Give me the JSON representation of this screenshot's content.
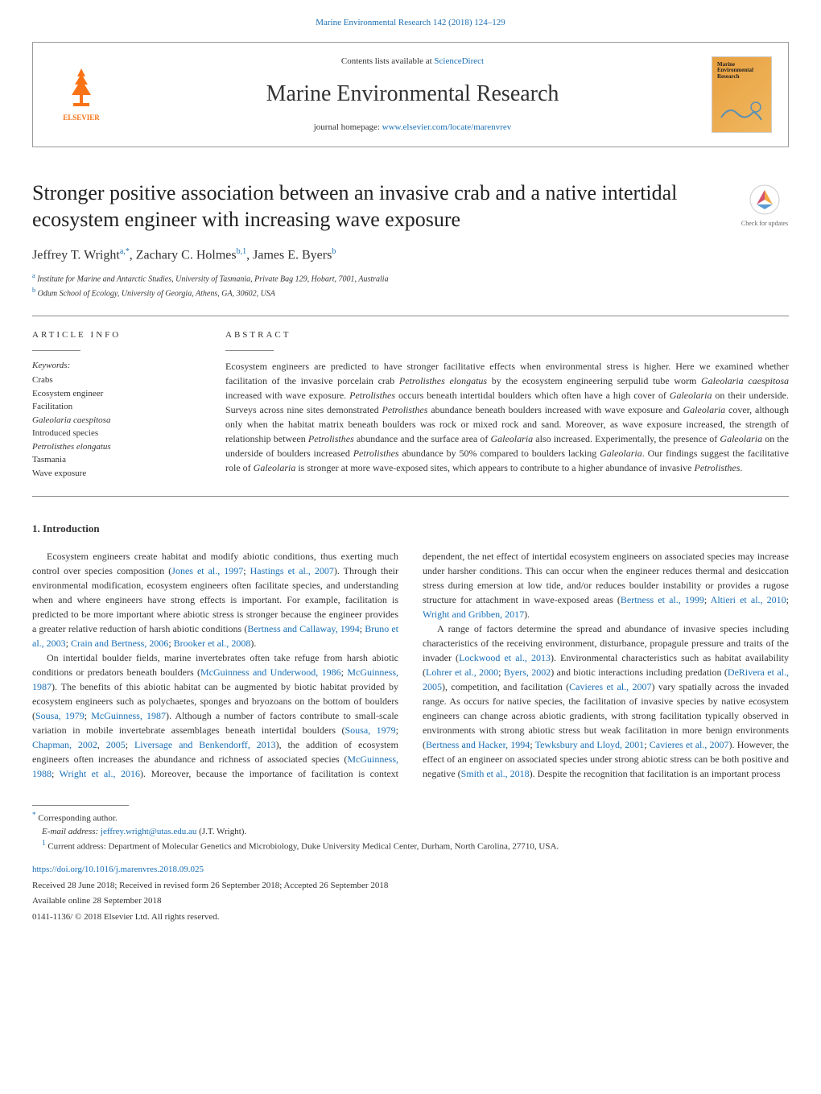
{
  "journal_ref": "Marine Environmental Research 142 (2018) 124–129",
  "header": {
    "contents_prefix": "Contents lists available at ",
    "contents_link": "ScienceDirect",
    "journal_name": "Marine Environmental Research",
    "homepage_prefix": "journal homepage: ",
    "homepage_link": "www.elsevier.com/locate/marenvrev",
    "publisher": "ELSEVIER",
    "cover_title": "Marine Environmental Research"
  },
  "article": {
    "title": "Stronger positive association between an invasive crab and a native intertidal ecosystem engineer with increasing wave exposure",
    "check_updates": "Check for updates",
    "authors_html": "Jeffrey T. Wright<sup>a,*</sup>, Zachary C. Holmes<sup>b,1</sup>, James E. Byers<sup>b</sup>",
    "affiliations": {
      "a": "Institute for Marine and Antarctic Studies, University of Tasmania, Private Bag 129, Hobart, 7001, Australia",
      "b": "Odum School of Ecology, University of Georgia, Athens, GA, 30602, USA"
    }
  },
  "info": {
    "heading": "ARTICLE INFO",
    "keywords_label": "Keywords:",
    "keywords": [
      {
        "text": "Crabs",
        "italic": false
      },
      {
        "text": "Ecosystem engineer",
        "italic": false
      },
      {
        "text": "Facilitation",
        "italic": false
      },
      {
        "text": "Galeolaria caespitosa",
        "italic": true
      },
      {
        "text": "Introduced species",
        "italic": false
      },
      {
        "text": "Petrolisthes elongatus",
        "italic": true
      },
      {
        "text": "Tasmania",
        "italic": false
      },
      {
        "text": "Wave exposure",
        "italic": false
      }
    ]
  },
  "abstract": {
    "heading": "ABSTRACT",
    "text": "Ecosystem engineers are predicted to have stronger facilitative effects when environmental stress is higher. Here we examined whether facilitation of the invasive porcelain crab Petrolisthes elongatus by the ecosystem engineering serpulid tube worm Galeolaria caespitosa increased with wave exposure. Petrolisthes occurs beneath intertidal boulders which often have a high cover of Galeolaria on their underside. Surveys across nine sites demonstrated Petrolisthes abundance beneath boulders increased with wave exposure and Galeolaria cover, although only when the habitat matrix beneath boulders was rock or mixed rock and sand. Moreover, as wave exposure increased, the strength of relationship between Petrolisthes abundance and the surface area of Galeolaria also increased. Experimentally, the presence of Galeolaria on the underside of boulders increased Petrolisthes abundance by 50% compared to boulders lacking Galeolaria. Our findings suggest the facilitative role of Galeolaria is stronger at more wave-exposed sites, which appears to contribute to a higher abundance of invasive Petrolisthes."
  },
  "body": {
    "heading": "1. Introduction",
    "paragraphs": [
      "Ecosystem engineers create habitat and modify abiotic conditions, thus exerting much control over species composition (<a>Jones et al., 1997</a>; <a>Hastings et al., 2007</a>). Through their environmental modification, ecosystem engineers often facilitate species, and understanding when and where engineers have strong effects is important. For example, facilitation is predicted to be more important where abiotic stress is stronger because the engineer provides a greater relative reduction of harsh abiotic conditions (<a>Bertness and Callaway, 1994</a>; <a>Bruno et al., 2003</a>; <a>Crain and Bertness, 2006</a>; <a>Brooker et al., 2008</a>).",
      "On intertidal boulder fields, marine invertebrates often take refuge from harsh abiotic conditions or predators beneath boulders (<a>McGuinness and Underwood, 1986</a>; <a>McGuinness, 1987</a>). The benefits of this abiotic habitat can be augmented by biotic habitat provided by ecosystem engineers such as polychaetes, sponges and bryozoans on the bottom of boulders (<a>Sousa, 1979</a>; <a>McGuinness, 1987</a>). Although a number of factors contribute to small-scale variation in mobile invertebrate assemblages beneath intertidal boulders (<a>Sousa, 1979</a>; <a>Chapman, 2002</a>, <a>2005</a>; <a>Liversage and Benkendorff, 2013</a>), the addition of ecosystem engineers often increases the abundance and richness of associated species (<a>McGuinness, 1988</a>; <a>Wright et al., 2016</a>). Moreover, because the importance of facilitation is context dependent, the net effect of intertidal ecosystem engineers on associated species may increase under harsher conditions. This can occur when the engineer reduces thermal and desiccation stress during emersion at low tide, and/or reduces boulder instability or provides a rugose structure for attachment in wave-exposed areas (<a>Bertness et al., 1999</a>; <a>Altieri et al., 2010</a>; <a>Wright and Gribben, 2017</a>).",
      "A range of factors determine the spread and abundance of invasive species including characteristics of the receiving environment, disturbance, propagule pressure and traits of the invader (<a>Lockwood et al., 2013</a>). Environmental characteristics such as habitat availability (<a>Lohrer et al., 2000</a>; <a>Byers, 2002</a>) and biotic interactions including predation (<a>DeRivera et al., 2005</a>), competition, and facilitation (<a>Cavieres et al., 2007</a>) vary spatially across the invaded range. As occurs for native species, the facilitation of invasive species by native ecosystem engineers can change across abiotic gradients, with strong facilitation typically observed in environments with strong abiotic stress but weak facilitation in more benign environments (<a>Bertness and Hacker, 1994</a>; <a>Tewksbury and Lloyd, 2001</a>; <a>Cavieres et al., 2007</a>). However, the effect of an engineer on associated species under strong abiotic stress can be both positive and negative (<a>Smith et al., 2018</a>). Despite the recognition that facilitation is an important process"
    ]
  },
  "footer": {
    "corresponding": "Corresponding author.",
    "email_label": "E-mail address: ",
    "email": "jeffrey.wright@utas.edu.au",
    "email_name": " (J.T. Wright).",
    "note1": "Current address: Department of Molecular Genetics and Microbiology, Duke University Medical Center, Durham, North Carolina, 27710, USA.",
    "doi": "https://doi.org/10.1016/j.marenvres.2018.09.025",
    "received": "Received 28 June 2018; Received in revised form 26 September 2018; Accepted 26 September 2018",
    "available": "Available online 28 September 2018",
    "copyright": "0141-1136/ © 2018 Elsevier Ltd. All rights reserved."
  },
  "colors": {
    "link": "#1a6fb5",
    "publisher": "#f97316",
    "text": "#333333",
    "border": "#999999"
  }
}
